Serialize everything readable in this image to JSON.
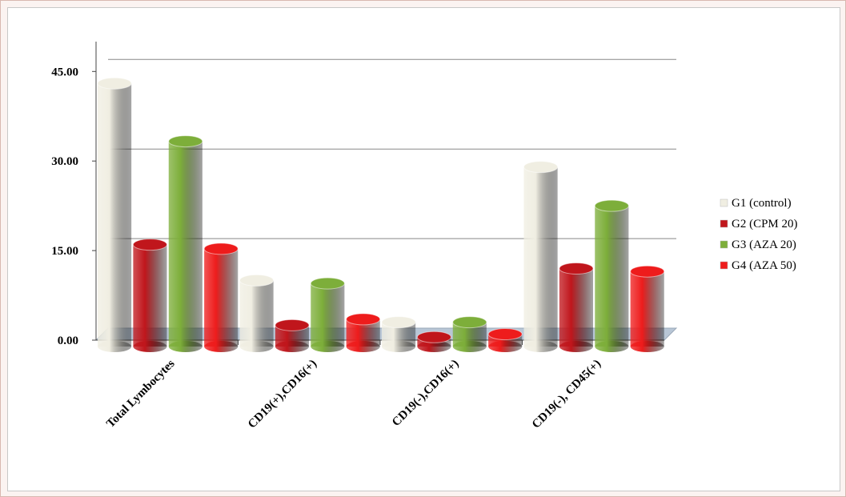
{
  "chart_data": {
    "type": "bar",
    "categories": [
      "Total Lymbocytes",
      "CD19(+),CD16(+)",
      "CD19(-),CD16(+)",
      "CD19(-), CD45(+)"
    ],
    "series": [
      {
        "name": "G1 (control)",
        "color": "#f0eee2",
        "values": [
          43,
          10,
          3,
          29
        ]
      },
      {
        "name": "G2 (CPM 20)",
        "color": "#c0161c",
        "values": [
          16,
          2.5,
          0.5,
          12
        ]
      },
      {
        "name": "G3 (AZA 20)",
        "color": "#7dae3a",
        "values": [
          33.3,
          9.5,
          3,
          22.5
        ]
      },
      {
        "name": "G4 (AZA 50)",
        "color": "#ee1c1c",
        "values": [
          15.3,
          3.5,
          1,
          11.5
        ]
      }
    ],
    "ylim": [
      0,
      50
    ],
    "yticks": [
      {
        "value": 0,
        "label": "0.00"
      },
      {
        "value": 15,
        "label": "15.00"
      },
      {
        "value": 30,
        "label": "30.00"
      },
      {
        "value": 45,
        "label": "45.00"
      }
    ],
    "grid": true,
    "legend": "right"
  }
}
